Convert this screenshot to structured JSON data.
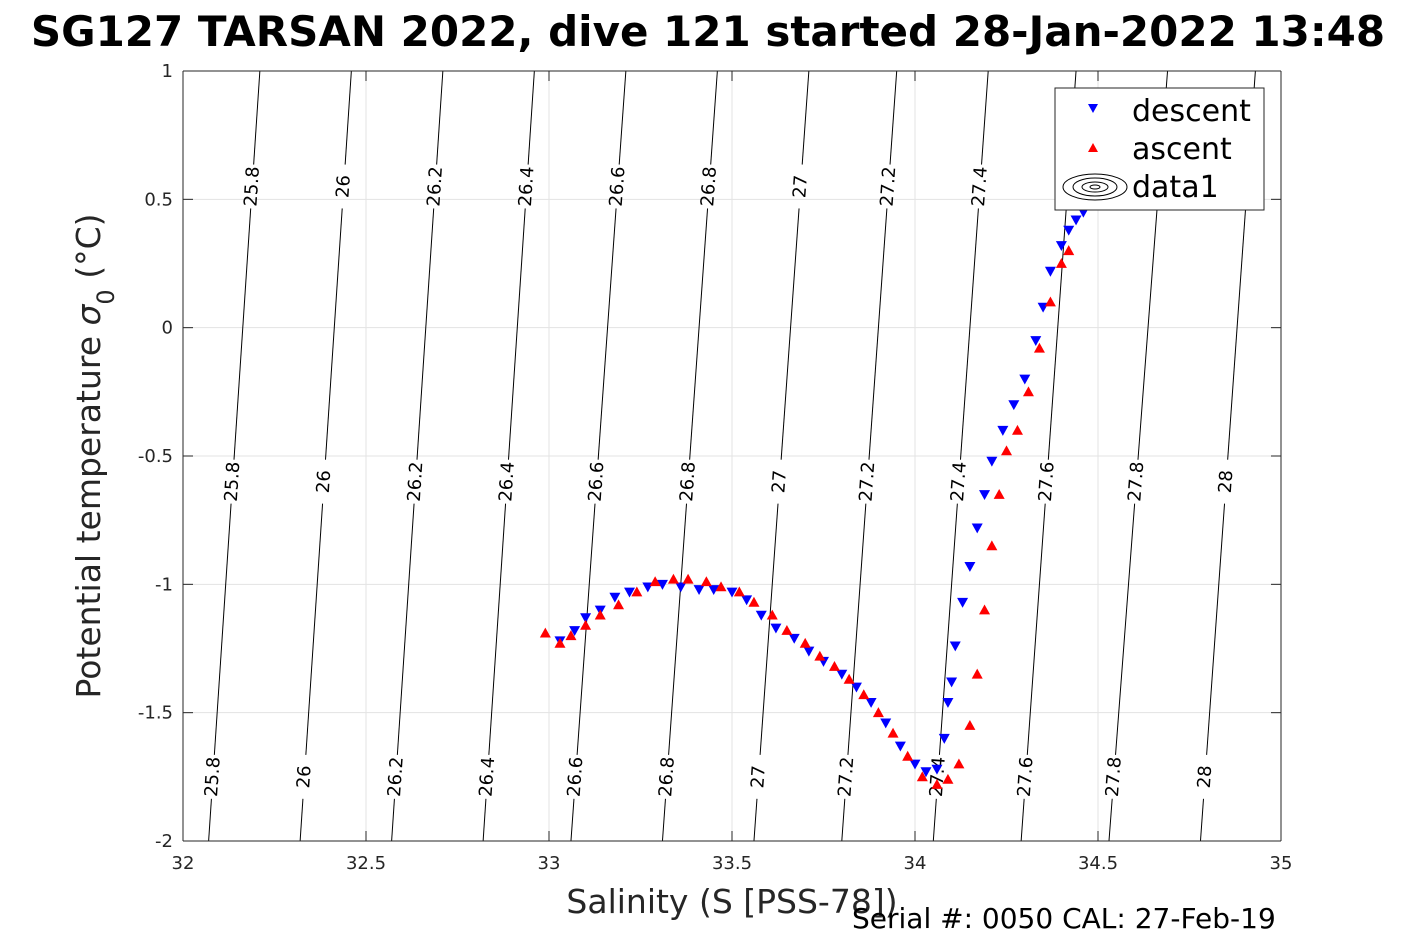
{
  "chart_data": {
    "type": "scatter",
    "title": "SG127 TARSAN 2022, dive 121 started 28-Jan-2022 13:48",
    "xlabel": "Salinity (S [PSS-78])",
    "ylabel_text": "Potential temperature ",
    "ylabel_sigma": "σ",
    "ylabel_sub": "0",
    "ylabel_unit": " (°C)",
    "footer": "Serial #: 0050  CAL: 27-Feb-19",
    "xlim": [
      32,
      35
    ],
    "ylim": [
      -2,
      1
    ],
    "xticks": [
      32,
      32.5,
      33,
      33.5,
      34,
      34.5,
      35
    ],
    "xtick_labels": [
      "32",
      "32.5",
      "33",
      "33.5",
      "34",
      "34.5",
      "35"
    ],
    "yticks": [
      -2,
      -1.5,
      -1,
      -0.5,
      0,
      0.5,
      1
    ],
    "ytick_labels": [
      "-2",
      "-1.5",
      "-1",
      "-0.5",
      "0",
      "0.5",
      "1"
    ],
    "grid": true,
    "legend_position": "top-right",
    "legend": [
      {
        "name": "descent",
        "marker": "triangle-down",
        "color": "#0000ff"
      },
      {
        "name": "ascent",
        "marker": "triangle-up",
        "color": "#ff0000"
      },
      {
        "name": "data1",
        "marker": "contour",
        "color": "#000000"
      }
    ],
    "contours": {
      "levels": [
        25.8,
        26,
        26.2,
        26.4,
        26.6,
        26.8,
        27,
        27.2,
        27.4,
        27.6,
        27.8,
        28
      ],
      "labels": [
        "25.8",
        "26",
        "26.2",
        "26.4",
        "26.6",
        "26.8",
        "27",
        "27.2",
        "27.4",
        "27.6",
        "27.8",
        "28"
      ],
      "s_at_bottom": [
        32.07,
        32.32,
        32.57,
        32.82,
        33.06,
        33.31,
        33.56,
        33.8,
        34.05,
        34.29,
        34.53,
        34.78
      ],
      "s_at_top": [
        32.21,
        32.46,
        32.71,
        32.96,
        33.21,
        33.46,
        33.71,
        33.95,
        34.2,
        34.44,
        34.69,
        34.93
      ],
      "label_temps": [
        -1.75,
        -0.6,
        0.55
      ]
    },
    "series": [
      {
        "name": "descent",
        "marker": "triangle-down",
        "color": "#0000ff",
        "points": [
          [
            33.03,
            -1.22
          ],
          [
            33.07,
            -1.18
          ],
          [
            33.1,
            -1.13
          ],
          [
            33.14,
            -1.1
          ],
          [
            33.18,
            -1.05
          ],
          [
            33.22,
            -1.03
          ],
          [
            33.27,
            -1.01
          ],
          [
            33.31,
            -1.0
          ],
          [
            33.36,
            -1.01
          ],
          [
            33.41,
            -1.02
          ],
          [
            33.45,
            -1.02
          ],
          [
            33.5,
            -1.03
          ],
          [
            33.54,
            -1.06
          ],
          [
            33.58,
            -1.12
          ],
          [
            33.62,
            -1.17
          ],
          [
            33.67,
            -1.21
          ],
          [
            33.71,
            -1.26
          ],
          [
            33.75,
            -1.3
          ],
          [
            33.8,
            -1.35
          ],
          [
            33.84,
            -1.4
          ],
          [
            33.88,
            -1.46
          ],
          [
            33.92,
            -1.54
          ],
          [
            33.96,
            -1.63
          ],
          [
            34.0,
            -1.7
          ],
          [
            34.03,
            -1.73
          ],
          [
            34.06,
            -1.72
          ],
          [
            34.08,
            -1.6
          ],
          [
            34.09,
            -1.46
          ],
          [
            34.1,
            -1.38
          ],
          [
            34.11,
            -1.24
          ],
          [
            34.13,
            -1.07
          ],
          [
            34.15,
            -0.93
          ],
          [
            34.17,
            -0.78
          ],
          [
            34.19,
            -0.65
          ],
          [
            34.21,
            -0.52
          ],
          [
            34.24,
            -0.4
          ],
          [
            34.27,
            -0.3
          ],
          [
            34.3,
            -0.2
          ],
          [
            34.33,
            -0.05
          ],
          [
            34.35,
            0.08
          ],
          [
            34.37,
            0.22
          ],
          [
            34.4,
            0.32
          ],
          [
            34.42,
            0.38
          ],
          [
            34.44,
            0.42
          ],
          [
            34.46,
            0.45
          ]
        ]
      },
      {
        "name": "ascent",
        "marker": "triangle-up",
        "color": "#ff0000",
        "points": [
          [
            32.99,
            -1.19
          ],
          [
            33.03,
            -1.23
          ],
          [
            33.06,
            -1.2
          ],
          [
            33.1,
            -1.16
          ],
          [
            33.14,
            -1.12
          ],
          [
            33.19,
            -1.08
          ],
          [
            33.24,
            -1.03
          ],
          [
            33.29,
            -0.99
          ],
          [
            33.34,
            -0.98
          ],
          [
            33.38,
            -0.98
          ],
          [
            33.43,
            -0.99
          ],
          [
            33.47,
            -1.01
          ],
          [
            33.52,
            -1.03
          ],
          [
            33.56,
            -1.07
          ],
          [
            33.61,
            -1.12
          ],
          [
            33.65,
            -1.18
          ],
          [
            33.7,
            -1.23
          ],
          [
            33.74,
            -1.28
          ],
          [
            33.78,
            -1.32
          ],
          [
            33.82,
            -1.37
          ],
          [
            33.86,
            -1.43
          ],
          [
            33.9,
            -1.5
          ],
          [
            33.94,
            -1.58
          ],
          [
            33.98,
            -1.67
          ],
          [
            34.02,
            -1.75
          ],
          [
            34.06,
            -1.78
          ],
          [
            34.09,
            -1.76
          ],
          [
            34.12,
            -1.7
          ],
          [
            34.15,
            -1.55
          ],
          [
            34.17,
            -1.35
          ],
          [
            34.19,
            -1.1
          ],
          [
            34.21,
            -0.85
          ],
          [
            34.23,
            -0.65
          ],
          [
            34.25,
            -0.48
          ],
          [
            34.28,
            -0.4
          ],
          [
            34.31,
            -0.25
          ],
          [
            34.34,
            -0.08
          ],
          [
            34.37,
            0.1
          ],
          [
            34.4,
            0.25
          ],
          [
            34.42,
            0.3
          ]
        ]
      }
    ]
  }
}
